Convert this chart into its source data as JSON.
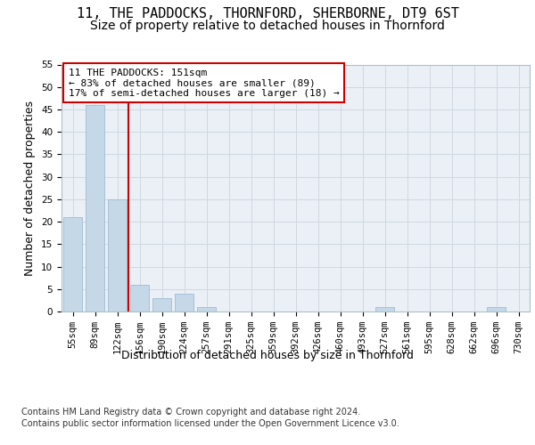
{
  "title": "11, THE PADDOCKS, THORNFORD, SHERBORNE, DT9 6ST",
  "subtitle": "Size of property relative to detached houses in Thornford",
  "xlabel": "Distribution of detached houses by size in Thornford",
  "ylabel": "Number of detached properties",
  "categories": [
    "55sqm",
    "89sqm",
    "122sqm",
    "156sqm",
    "190sqm",
    "224sqm",
    "257sqm",
    "291sqm",
    "325sqm",
    "359sqm",
    "392sqm",
    "426sqm",
    "460sqm",
    "493sqm",
    "527sqm",
    "561sqm",
    "595sqm",
    "628sqm",
    "662sqm",
    "696sqm",
    "730sqm"
  ],
  "values": [
    21,
    46,
    25,
    6,
    3,
    4,
    1,
    0,
    0,
    0,
    0,
    0,
    0,
    0,
    1,
    0,
    0,
    0,
    0,
    1,
    0
  ],
  "bar_color": "#c5d8e8",
  "bar_edge_color": "#a0bcd4",
  "vline_x": 2.5,
  "vline_color": "#cc0000",
  "annotation_text": "11 THE PADDOCKS: 151sqm\n← 83% of detached houses are smaller (89)\n17% of semi-detached houses are larger (18) →",
  "annotation_box_color": "#ffffff",
  "annotation_box_edge": "#cc0000",
  "ylim": [
    0,
    55
  ],
  "yticks": [
    0,
    5,
    10,
    15,
    20,
    25,
    30,
    35,
    40,
    45,
    50,
    55
  ],
  "grid_color": "#d0d8e0",
  "bg_color": "#eaf0f6",
  "footer": "Contains HM Land Registry data © Crown copyright and database right 2024.\nContains public sector information licensed under the Open Government Licence v3.0.",
  "title_fontsize": 11,
  "subtitle_fontsize": 10,
  "axis_label_fontsize": 9,
  "tick_fontsize": 7.5,
  "annotation_fontsize": 8,
  "footer_fontsize": 7
}
